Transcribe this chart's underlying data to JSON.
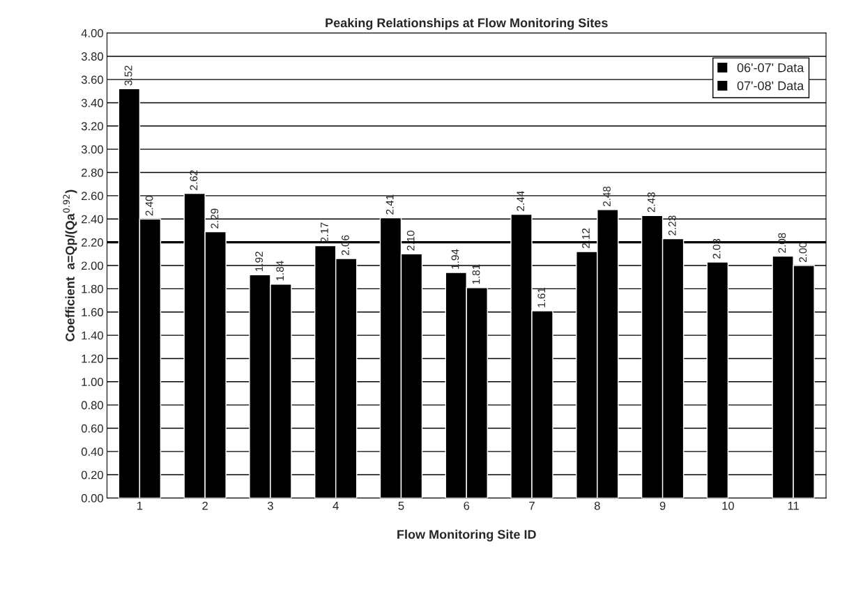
{
  "chart_data": {
    "type": "bar",
    "title": "Peaking Relationships at Flow Monitoring Sites",
    "xlabel": "Flow Monitoring Site ID",
    "ylabel": "Coefficient  a=Qp/(Qa$^{0.92}$)",
    "categories": [
      "1",
      "2",
      "3",
      "4",
      "5",
      "6",
      "7",
      "8",
      "9",
      "10",
      "11"
    ],
    "series": [
      {
        "name": "06'-07' Data",
        "color": "#000000",
        "values": [
          3.52,
          2.62,
          1.92,
          2.17,
          2.41,
          1.94,
          2.44,
          2.12,
          2.43,
          2.03,
          2.08
        ],
        "value_labels": [
          "3.52",
          "2.62",
          "1.92",
          "2.17",
          "2.41",
          "1.94",
          "2.44",
          "2.12",
          "2.43",
          "2.03",
          "2.08"
        ]
      },
      {
        "name": "07'-08' Data",
        "color": "#000000",
        "values": [
          2.4,
          2.29,
          1.84,
          2.06,
          2.1,
          1.81,
          1.61,
          2.48,
          2.23,
          null,
          2.0
        ],
        "value_labels": [
          "2.40",
          "2.29",
          "1.84",
          "2.06",
          "2.10",
          "1.81",
          "1.61",
          "2.48",
          "2.23",
          null,
          "2.00"
        ]
      }
    ],
    "ylim": [
      0,
      4
    ],
    "yticks": [
      "0.00",
      "0.20",
      "0.40",
      "0.60",
      "0.80",
      "1.00",
      "1.20",
      "1.40",
      "1.60",
      "1.80",
      "2.00",
      "2.20",
      "2.40",
      "2.60",
      "2.80",
      "3.00",
      "3.20",
      "3.40",
      "3.60",
      "3.80",
      "4.00"
    ],
    "ref_lines": [
      {
        "axis": "y",
        "value": 2.2,
        "color": "#000000"
      }
    ],
    "grid": "y",
    "legend": "top right"
  }
}
